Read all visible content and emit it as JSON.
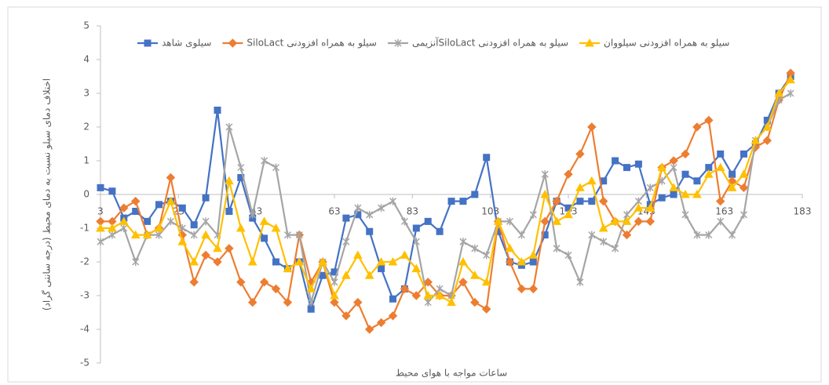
{
  "chart_data": {
    "type": "line",
    "ylabel": "اختلاف دمای سیلو نسبت به دمای محیط  (درجه سانتی گراد)",
    "xlabel": "ساعات مواجه با هوای محیط",
    "xlim": [
      3,
      183
    ],
    "xticks": [
      3,
      23,
      43,
      63,
      83,
      103,
      123,
      143,
      163,
      183
    ],
    "ylim": [
      -5,
      5
    ],
    "yticks": [
      -5,
      -4,
      -3,
      -2,
      -1,
      0,
      1,
      2,
      3,
      4,
      5
    ],
    "grid": false,
    "legend": "top",
    "x": [
      3,
      6,
      9,
      12,
      15,
      18,
      21,
      24,
      27,
      30,
      33,
      36,
      39,
      42,
      45,
      48,
      51,
      54,
      57,
      60,
      63,
      66,
      69,
      72,
      75,
      78,
      81,
      84,
      87,
      90,
      93,
      96,
      99,
      102,
      105,
      108,
      111,
      114,
      117,
      120,
      123,
      126,
      129,
      132,
      135,
      138,
      141,
      144,
      147,
      150,
      153,
      156,
      159,
      162,
      165,
      168,
      171,
      174,
      177,
      180
    ],
    "series": [
      {
        "name": "سیلوی شاهد",
        "color": "#4472c4",
        "marker": "square",
        "values": [
          0.2,
          0.1,
          -0.7,
          -0.5,
          -0.8,
          -0.3,
          -0.2,
          -0.4,
          -0.9,
          -0.1,
          2.5,
          -0.5,
          0.5,
          -0.7,
          -1.3,
          -2.0,
          -2.2,
          -2.0,
          -3.4,
          -2.4,
          -2.3,
          -0.7,
          -0.6,
          -1.1,
          -2.2,
          -3.1,
          -2.8,
          -1.0,
          -0.8,
          -1.1,
          -0.2,
          -0.2,
          0.0,
          1.1,
          -1.1,
          -2.0,
          -2.1,
          -2.0,
          -1.2,
          -0.2,
          -0.4,
          -0.2,
          -0.2,
          0.4,
          1.0,
          0.8,
          0.9,
          -0.3,
          -0.1,
          0.0,
          0.6,
          0.4,
          0.8,
          1.2,
          0.6,
          1.2,
          1.5,
          2.2,
          3.0,
          3.5
        ]
      },
      {
        "name": "سیلو به همراه افزودنی SiloLact",
        "color": "#ed7d31",
        "marker": "diamond",
        "values": [
          -0.8,
          -0.8,
          -0.4,
          -0.2,
          -1.2,
          -1.0,
          0.5,
          -1.2,
          -2.6,
          -1.8,
          -2.0,
          -1.6,
          -2.6,
          -3.2,
          -2.6,
          -2.8,
          -3.2,
          -1.2,
          -2.6,
          -2.0,
          -3.2,
          -3.6,
          -3.2,
          -4.0,
          -3.8,
          -3.6,
          -2.8,
          -3.0,
          -2.6,
          -3.0,
          -3.0,
          -2.6,
          -3.2,
          -3.4,
          -0.8,
          -2.0,
          -2.8,
          -2.8,
          -0.8,
          -0.2,
          0.6,
          1.2,
          2.0,
          -0.2,
          -0.8,
          -1.2,
          -0.8,
          -0.8,
          0.8,
          1.0,
          1.2,
          2.0,
          2.2,
          -0.2,
          0.4,
          0.2,
          1.4,
          1.6,
          2.8,
          3.6
        ]
      },
      {
        "name": "سیلو به همراه افزودنی SiloLactآنزیمی",
        "color": "#a5a5a5",
        "marker": "star",
        "values": [
          -1.4,
          -1.2,
          -1.0,
          -2.0,
          -1.2,
          -1.2,
          -0.8,
          -1.0,
          -1.2,
          -0.8,
          -1.2,
          2.0,
          0.8,
          -0.6,
          1.0,
          0.8,
          -1.2,
          -1.2,
          -3.2,
          -2.0,
          -2.6,
          -1.4,
          -0.4,
          -0.6,
          -0.4,
          -0.2,
          -0.8,
          -1.4,
          -3.2,
          -2.8,
          -3.0,
          -1.4,
          -1.6,
          -1.8,
          -0.8,
          -0.8,
          -1.2,
          -0.6,
          0.6,
          -1.6,
          -1.8,
          -2.6,
          -1.2,
          -1.4,
          -1.6,
          -0.6,
          -0.2,
          0.2,
          0.4,
          0.8,
          -0.6,
          -1.2,
          -1.2,
          -0.8,
          -1.2,
          -0.6,
          1.6,
          2.0,
          2.8,
          3.0
        ]
      },
      {
        "name": "سیلو به همراه افزودنی سیلووان",
        "color": "#ffc000",
        "marker": "triangle",
        "values": [
          -1.0,
          -1.0,
          -0.8,
          -1.2,
          -1.2,
          -1.0,
          -0.2,
          -1.4,
          -2.0,
          -1.2,
          -1.6,
          0.4,
          -1.0,
          -2.0,
          -0.8,
          -1.0,
          -2.2,
          -2.0,
          -2.8,
          -2.0,
          -3.0,
          -2.4,
          -1.8,
          -2.4,
          -2.0,
          -2.0,
          -1.8,
          -2.2,
          -3.0,
          -3.0,
          -3.2,
          -2.0,
          -2.4,
          -2.6,
          -0.8,
          -1.6,
          -2.0,
          -1.8,
          0.0,
          -0.8,
          -0.6,
          0.2,
          0.4,
          -1.0,
          -0.8,
          -0.8,
          -0.4,
          -0.4,
          0.8,
          0.2,
          0.0,
          0.0,
          0.6,
          0.8,
          0.2,
          0.6,
          1.6,
          2.0,
          3.0,
          3.4
        ]
      }
    ]
  }
}
